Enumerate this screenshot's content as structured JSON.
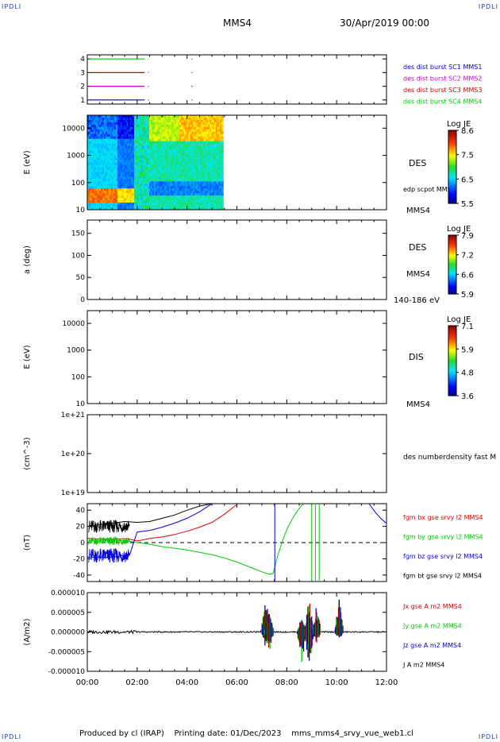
{
  "page": {
    "corner_label": "IPDLI",
    "spacecraft": "MMS4",
    "date": "30/Apr/2019 00:00",
    "footer": "Produced by cl (IRAP)    Printing date: 01/Dec/2023    mms_mms4_srvy_vue_web1.cl"
  },
  "chart_data": [
    {
      "panel": "burst-availability",
      "type": "line",
      "yticks": [
        "1",
        "2",
        "3",
        "4"
      ],
      "legend": [
        {
          "name": "des dist burst SC1 MMS1",
          "color": "#0000cc"
        },
        {
          "name": "des dist burst SC2 MMS2",
          "color": "#cc00cc"
        },
        {
          "name": "des dist burst SC3 MMS3",
          "color": "#cc0000"
        },
        {
          "name": "des dist burst SC4 MMS4",
          "color": "#00cc00"
        }
      ],
      "segments": [
        {
          "level": 4,
          "start_hr": 0.1,
          "end_hr": 2.3,
          "color": "#00cc00"
        },
        {
          "level": 3,
          "start_hr": 0.1,
          "end_hr": 2.3,
          "color": "#cc0000"
        },
        {
          "level": 2,
          "start_hr": 0.1,
          "end_hr": 2.3,
          "color": "#cc00cc"
        },
        {
          "level": 1,
          "start_hr": 0.1,
          "end_hr": 2.3,
          "color": "#0000cc"
        }
      ]
    },
    {
      "panel": "des-energy-spectrogram",
      "type": "heatmap",
      "ylabel": "E (eV)",
      "yscale": "log",
      "ylim": [
        10,
        30000
      ],
      "yticks": [
        "10",
        "100",
        "1000",
        "10000"
      ],
      "data_extent_hr": [
        0,
        5.45
      ],
      "labels": [
        "DES",
        "edp scpot MMS4",
        "MMS4"
      ],
      "colorbar": {
        "title": "Log JE",
        "ticks": [
          "5.5",
          "6.5",
          "7.5",
          "8.6"
        ],
        "min": 5.5,
        "max": 8.6
      }
    },
    {
      "panel": "des-pitch-angle",
      "type": "heatmap",
      "ylabel": "a (deg)",
      "ylim": [
        0,
        180
      ],
      "yticks": [
        "0",
        "50",
        "100",
        "150"
      ],
      "data_extent_hr": [
        0,
        5.45
      ],
      "labels": [
        "DES",
        "MMS4",
        "140-186 eV"
      ],
      "colorbar": {
        "title": "Log JE",
        "ticks": [
          "5.9",
          "6.6",
          "7.2",
          "7.9"
        ],
        "min": 5.9,
        "max": 7.9
      }
    },
    {
      "panel": "dis-energy-spectrogram",
      "type": "heatmap",
      "ylabel": "E (eV)",
      "yscale": "log",
      "ylim": [
        10,
        30000
      ],
      "yticks": [
        "10",
        "100",
        "1000",
        "10000"
      ],
      "data_extent_hr": [
        0,
        5.45
      ],
      "labels": [
        "DIS",
        "MMS4"
      ],
      "colorbar": {
        "title": "Log JE",
        "ticks": [
          "3.6",
          "4.8",
          "5.9",
          "7.1"
        ],
        "min": 3.6,
        "max": 7.1
      }
    },
    {
      "panel": "density",
      "type": "line",
      "ylabel": "(cm^-3)",
      "yscale": "log",
      "yticks": [
        "1e+19",
        "1e+20",
        "1e+21"
      ],
      "labels": [
        "des numberdensity fast M"
      ],
      "series": []
    },
    {
      "panel": "magnetic-field",
      "type": "line",
      "ylabel": "(nT)",
      "ylim": [
        -48,
        48
      ],
      "yticks": [
        "-40",
        "-20",
        "0",
        "20",
        "40"
      ],
      "legend": [
        {
          "name": "fgm bx gse srvy l2 MMS4",
          "color": "#dd0000"
        },
        {
          "name": "fgm by gse srvy l2 MMS4",
          "color": "#00cc00"
        },
        {
          "name": "fgm bz gse srvy l2 MMS4",
          "color": "#0000dd"
        },
        {
          "name": "fgm bt gse srvy l2 MMS4",
          "color": "#000000"
        }
      ],
      "series": [
        {
          "name": "bx",
          "color": "#dd0000",
          "x": [
            0,
            1,
            1.6,
            2.0,
            2.5,
            3.0,
            3.5,
            4.0,
            4.5,
            5.0,
            5.5,
            6.0
          ],
          "y": [
            5,
            4,
            5,
            2,
            5,
            7,
            10,
            14,
            19,
            25,
            35,
            47
          ]
        },
        {
          "name": "by",
          "color": "#00cc00",
          "x": [
            0,
            1.0,
            1.6,
            2.0,
            2.5,
            3.0,
            3.5,
            4.0,
            4.5,
            5.0,
            5.5,
            6.0,
            6.5,
            7.0,
            7.3,
            7.45,
            7.5,
            7.6,
            7.8,
            8.0,
            8.2,
            8.4,
            8.6,
            8.7
          ],
          "y": [
            2,
            3,
            2,
            0,
            -2,
            -5,
            -7,
            -9,
            -12,
            -15,
            -19,
            -24,
            -30,
            -36,
            -39,
            -38,
            -33,
            -20,
            0,
            16,
            28,
            38,
            46,
            48
          ]
        },
        {
          "name": "bz",
          "color": "#0000dd",
          "x": [
            0,
            1.0,
            1.7,
            2.0,
            2.5,
            3.0,
            3.5,
            4.0,
            4.5,
            5.0
          ],
          "y": [
            -18,
            -18,
            -15,
            13,
            15,
            19,
            24,
            30,
            38,
            48
          ]
        },
        {
          "name": "bt",
          "color": "#000000",
          "x": [
            0,
            0.5,
            1.0,
            1.5,
            2.0,
            2.5,
            3.0,
            3.5,
            4.0,
            4.5,
            5.0
          ],
          "y": [
            20,
            22,
            24,
            26,
            25,
            26,
            30,
            34,
            40,
            45,
            48
          ]
        }
      ],
      "zero_line": true
    },
    {
      "panel": "current-density",
      "type": "line",
      "ylabel": "(A/m2)",
      "ylim": [
        -1e-05,
        1e-05
      ],
      "yticks": [
        "-0.000010",
        "-0.000005",
        "0.000000",
        "0.000005",
        "0.000010"
      ],
      "legend": [
        {
          "name": "Jx gse A m2 MMS4",
          "color": "#dd0000"
        },
        {
          "name": "Jy gse A m2 MMS4",
          "color": "#00cc00"
        },
        {
          "name": "Jz gse A m2 MMS4",
          "color": "#0000dd"
        },
        {
          "name": "J A m2 MMS4",
          "color": "#000000"
        }
      ],
      "spikes": [
        {
          "hr": 7.15,
          "hi": 9.5e-06,
          "lo": -4e-06
        },
        {
          "hr": 7.3,
          "hi": 6e-06,
          "lo": -5e-06
        },
        {
          "hr": 8.6,
          "hi": 4e-06,
          "lo": -8e-06
        },
        {
          "hr": 8.9,
          "hi": 9e-06,
          "lo": -9.5e-06
        },
        {
          "hr": 9.2,
          "hi": 7e-06,
          "lo": -3e-06
        },
        {
          "hr": 10.1,
          "hi": 8.5e-06,
          "lo": -2e-06
        }
      ]
    }
  ],
  "xaxis": {
    "ticks": [
      "00:00",
      "02:00",
      "04:00",
      "06:00",
      "08:00",
      "10:00",
      "12:00"
    ],
    "range_hr": [
      0,
      12
    ]
  }
}
